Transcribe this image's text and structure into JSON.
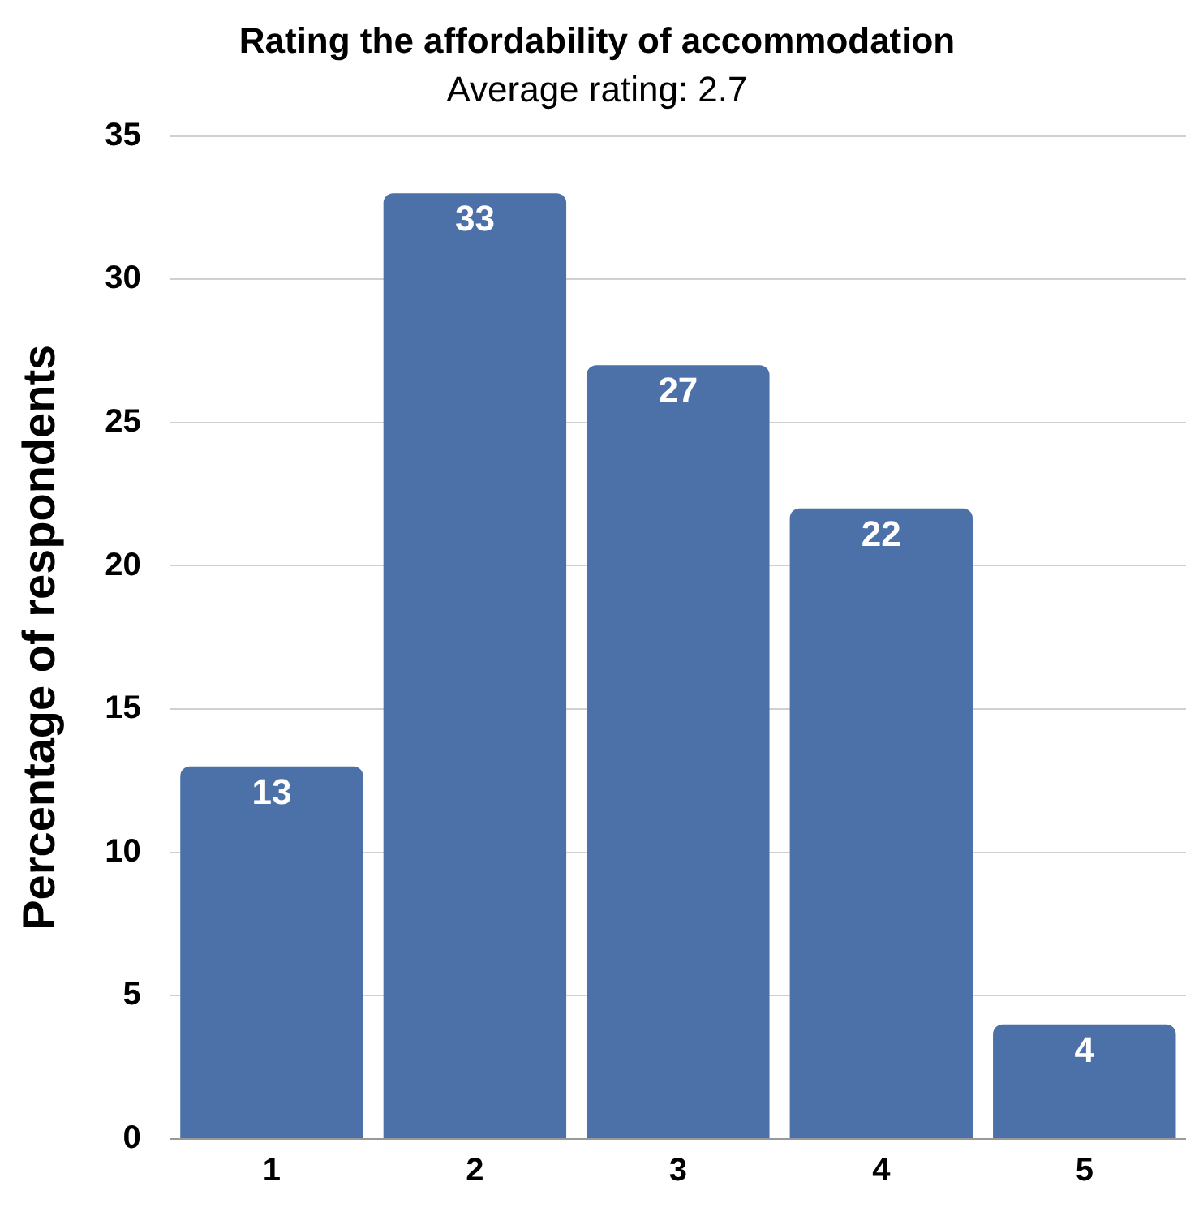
{
  "chart_data": {
    "type": "bar",
    "title": "Rating the affordability of accommodation",
    "subtitle": "Average rating: 2.7",
    "ylabel": "Percentage of respondents",
    "categories": [
      "1",
      "2",
      "3",
      "4",
      "5"
    ],
    "values": [
      13,
      33,
      27,
      22,
      4
    ],
    "color": "#4c70a8",
    "ylim": [
      0,
      35
    ],
    "yticks": [
      0,
      5,
      10,
      15,
      20,
      25,
      30,
      35
    ],
    "grid": "y",
    "data_labels": true,
    "legend": false
  }
}
